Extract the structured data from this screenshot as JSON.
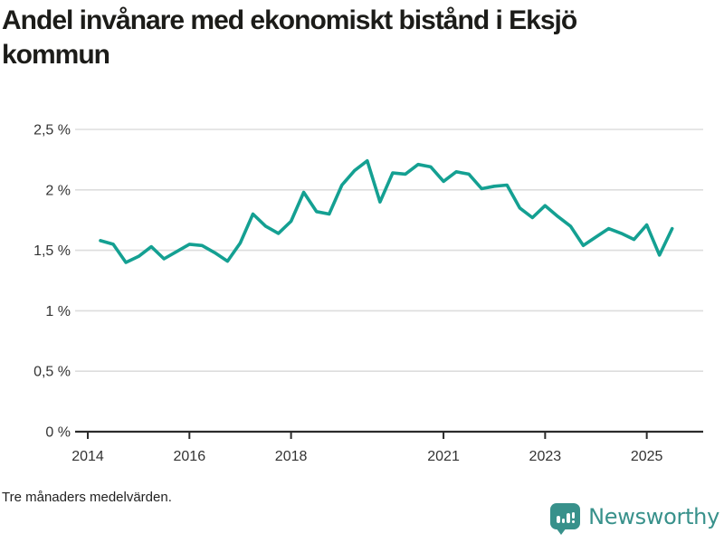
{
  "header": {
    "title": "Andel invånare med ekonomiskt bistånd i Eksjö kommun",
    "title_line1": "Andel invånare med ekonomiskt bistånd i Eksjö",
    "title_line2": "kommun"
  },
  "footnote": {
    "text": "Tre månaders medelvärden."
  },
  "branding": {
    "name": "Newsworthy",
    "icon": "newsworthy-pin-bar-chart-icon",
    "color": "#38918B"
  },
  "chart_data": {
    "type": "line",
    "title": "Andel invånare med ekonomiskt bistånd i Eksjö kommun",
    "subtitle": "Tre månaders medelvärden.",
    "xlabel": "",
    "ylabel": "",
    "unit": "%",
    "grid": true,
    "legend": "none",
    "xlim": [
      2013.75,
      2025.85
    ],
    "ylim": [
      0,
      2.5
    ],
    "x": [
      2014.25,
      2014.5,
      2014.75,
      2015.0,
      2015.25,
      2015.5,
      2015.75,
      2016.0,
      2016.25,
      2016.5,
      2016.75,
      2017.0,
      2017.25,
      2017.5,
      2017.75,
      2018.0,
      2018.25,
      2018.5,
      2018.75,
      2019.0,
      2019.25,
      2019.5,
      2019.75,
      2020.0,
      2020.25,
      2020.5,
      2020.75,
      2021.0,
      2021.25,
      2021.5,
      2021.75,
      2022.0,
      2022.25,
      2022.5,
      2022.75,
      2023.0,
      2023.25,
      2023.5,
      2023.75,
      2024.0,
      2024.25,
      2024.5,
      2024.75,
      2025.0,
      2025.25,
      2025.5
    ],
    "series": [
      {
        "name": "Andel invånare med ekonomiskt bistånd i Eksjö kommun",
        "color": "#14A092",
        "values": [
          1.58,
          1.55,
          1.4,
          1.45,
          1.53,
          1.43,
          1.49,
          1.55,
          1.54,
          1.48,
          1.41,
          1.56,
          1.8,
          1.7,
          1.64,
          1.74,
          1.98,
          1.82,
          1.8,
          2.04,
          2.16,
          2.24,
          1.9,
          2.14,
          2.13,
          2.21,
          2.19,
          2.07,
          2.15,
          2.13,
          2.01,
          2.03,
          2.04,
          1.85,
          1.77,
          1.87,
          1.78,
          1.7,
          1.54,
          1.61,
          1.68,
          1.64,
          1.59,
          1.71,
          1.46,
          1.68
        ]
      }
    ],
    "x_ticks": [
      {
        "value": 2014,
        "label": "2014"
      },
      {
        "value": 2016,
        "label": "2016"
      },
      {
        "value": 2018,
        "label": "2018"
      },
      {
        "value": 2021,
        "label": "2021"
      },
      {
        "value": 2023,
        "label": "2023"
      },
      {
        "value": 2025,
        "label": "2025"
      }
    ],
    "y_ticks": [
      {
        "value": 0,
        "label": "0 %"
      },
      {
        "value": 0.5,
        "label": "0,5 %"
      },
      {
        "value": 1,
        "label": "1 %"
      },
      {
        "value": 1.5,
        "label": "1,5 %"
      },
      {
        "value": 2,
        "label": "2 %"
      },
      {
        "value": 2.5,
        "label": "2,5 %"
      }
    ],
    "colors": {
      "line": "#14A092",
      "grid": "#DDDDDD",
      "axis": "#2B2B2B",
      "tick_text": "#333333"
    }
  }
}
